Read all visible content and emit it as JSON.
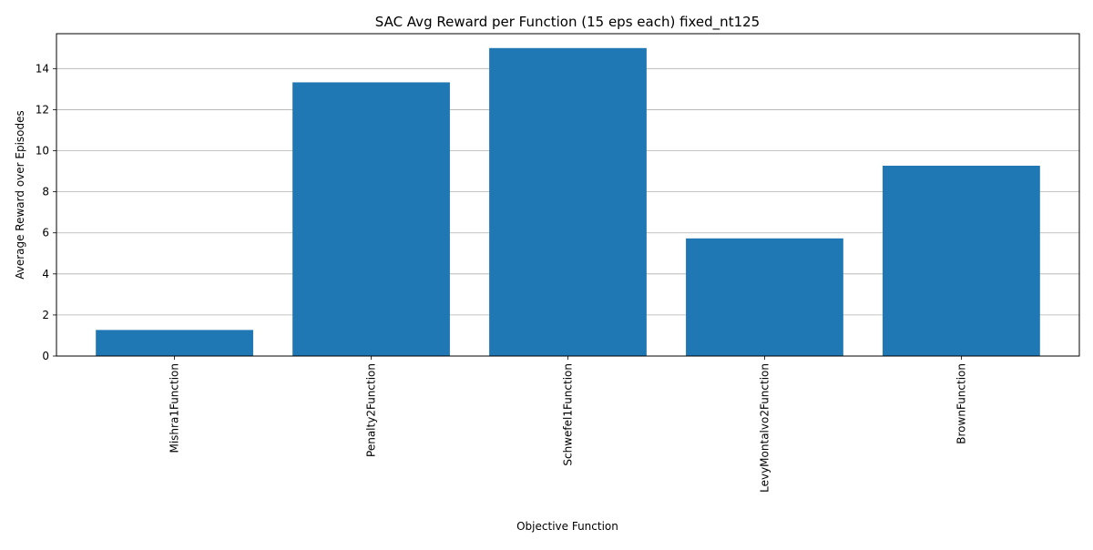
{
  "chart_data": {
    "type": "bar",
    "title": "SAC Avg Reward per Function (15 eps each) fixed_nt125",
    "xlabel": "Objective Function",
    "ylabel": "Average Reward over Episodes",
    "categories": [
      "Mishra1Function",
      "Penalty2Function",
      "Schwefel1Function",
      "LevyMontalvo2Function",
      "BrownFunction"
    ],
    "values": [
      1.27,
      13.33,
      15.0,
      5.73,
      9.27
    ],
    "ylim": [
      0,
      15.7
    ],
    "yticks": [
      0,
      2,
      4,
      6,
      8,
      10,
      12,
      14
    ],
    "grid": "y-major",
    "legend": "none",
    "bar_color": "#1f77b4",
    "grid_color": "#b0b0b0"
  }
}
